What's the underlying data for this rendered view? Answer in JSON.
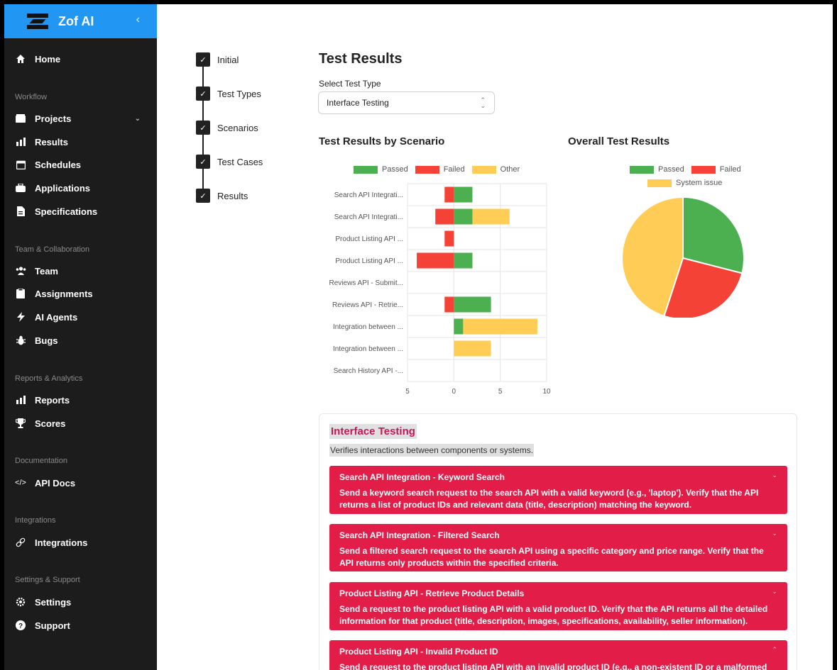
{
  "brand": {
    "name": "Zof AI",
    "collapse_glyph": "‹"
  },
  "sidebar": {
    "home": "Home",
    "sections": [
      {
        "title": "Workflow",
        "items": [
          "Projects",
          "Results",
          "Schedules",
          "Applications",
          "Specifications"
        ]
      },
      {
        "title": "Team & Collaboration",
        "items": [
          "Team",
          "Assignments",
          "AI Agents",
          "Bugs"
        ]
      },
      {
        "title": "Reports & Analytics",
        "items": [
          "Reports",
          "Scores"
        ]
      },
      {
        "title": "Documentation",
        "items": [
          "API Docs"
        ]
      },
      {
        "title": "Integrations",
        "items": [
          "Integrations"
        ]
      },
      {
        "title": "Settings & Support",
        "items": [
          "Settings",
          "Support"
        ]
      }
    ]
  },
  "stepper": [
    "Initial",
    "Test Types",
    "Scenarios",
    "Test Cases",
    "Results"
  ],
  "main": {
    "title": "Test Results",
    "select_label": "Select Test Type",
    "select_value": "Interface Testing"
  },
  "chart_data": [
    {
      "type": "bar",
      "title": "Test Results by Scenario",
      "orientation": "horizontal",
      "stacked": true,
      "categories": [
        "Search API Integrati...",
        "Search API Integrati...",
        "Product Listing API ...",
        "Product Listing API ...",
        "Reviews API - Submit...",
        "Reviews API - Retrie...",
        "Integration between ...",
        "Integration between ...",
        "Search History API -..."
      ],
      "series": [
        {
          "name": "Passed",
          "color": "#4caf50",
          "values": [
            2,
            2,
            0,
            2,
            0,
            4,
            1,
            0,
            0
          ]
        },
        {
          "name": "Failed",
          "color": "#f44336",
          "values": [
            -1,
            -2,
            -1,
            -4,
            0,
            -1,
            0,
            0,
            0
          ]
        },
        {
          "name": "Other",
          "color": "#ffcd56",
          "values": [
            0,
            4,
            0,
            0,
            0,
            0,
            8,
            4,
            0
          ]
        }
      ],
      "xticks": [
        "5",
        "0",
        "5",
        "10"
      ],
      "xlim": [
        -5,
        10
      ],
      "legend": "top",
      "grid": true
    },
    {
      "type": "pie",
      "title": "Overall Test Results",
      "labels": [
        "Passed",
        "Failed",
        "System issue"
      ],
      "values": [
        29,
        26,
        45
      ],
      "colors": [
        "#4caf50",
        "#f44336",
        "#ffcd56"
      ],
      "legend": "top"
    }
  ],
  "details": {
    "title": "Interface Testing",
    "description": "Verifies interactions between components or systems.",
    "items": [
      {
        "title": "Search API Integration - Keyword Search",
        "desc1": "Send a keyword search request to the search API with a valid keyword (e.g., 'laptop'). Verify that the API",
        "desc2": "returns a list of product IDs and relevant data (title, description) matching the keyword.",
        "chevron": "⌄"
      },
      {
        "title": "Search API Integration - Filtered Search",
        "desc1": "Send a filtered search request to the search API using a specific category and price range. Verify that the",
        "desc2": "API returns only products within the specified criteria.",
        "chevron": "⌄"
      },
      {
        "title": "Product Listing API - Retrieve Product Details",
        "desc1": "Send a request to the product listing API with a valid product ID. Verify that the API returns all the detailed",
        "desc2": "information for that product (title, description, images, specifications, availability, seller information).",
        "chevron": "⌄"
      },
      {
        "title": "Product Listing API - Invalid Product ID",
        "desc1": "Send a request to the product listing API with an invalid product ID (e.g., a non-existent ID or a malformed",
        "desc2": "",
        "chevron": "⌃"
      }
    ]
  }
}
